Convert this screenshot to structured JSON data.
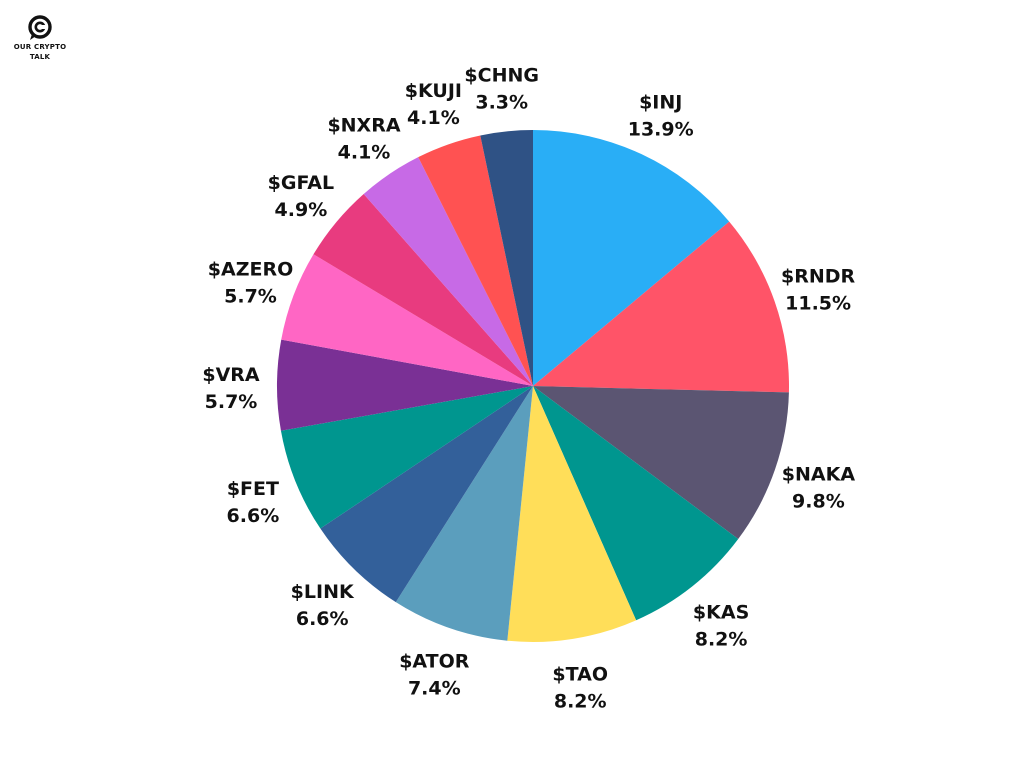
{
  "logo": {
    "line1": "OUR CRYPTO",
    "line2": "TALK"
  },
  "chart_data": {
    "type": "pie",
    "title": "",
    "start": "12 o'clock",
    "direction": "clockwise",
    "legend": "none",
    "slices": [
      {
        "label": "$INJ",
        "value": 13.9,
        "value_label": "13.9%",
        "color": "#29AEF6"
      },
      {
        "label": "$RNDR",
        "value": 11.5,
        "value_label": "11.5%",
        "color": "#FF5468"
      },
      {
        "label": "$NAKA",
        "value": 9.8,
        "value_label": "9.8%",
        "color": "#5B5572"
      },
      {
        "label": "$KAS",
        "value": 8.2,
        "value_label": "8.2%",
        "color": "#00968F"
      },
      {
        "label": "$TAO",
        "value": 8.2,
        "value_label": "8.2%",
        "color": "#FFDE59"
      },
      {
        "label": "$ATOR",
        "value": 7.4,
        "value_label": "7.4%",
        "color": "#5B9EBD"
      },
      {
        "label": "$LINK",
        "value": 6.6,
        "value_label": "6.6%",
        "color": "#33609A"
      },
      {
        "label": "$FET",
        "value": 6.6,
        "value_label": "6.6%",
        "color": "#00968F"
      },
      {
        "label": "$VRA",
        "value": 5.7,
        "value_label": "5.7%",
        "color": "#7A3095"
      },
      {
        "label": "$AZERO",
        "value": 5.7,
        "value_label": "5.7%",
        "color": "#FF66C4"
      },
      {
        "label": "$GFAL",
        "value": 4.9,
        "value_label": "4.9%",
        "color": "#E83B7F"
      },
      {
        "label": "$NXRA",
        "value": 4.1,
        "value_label": "4.1%",
        "color": "#C76AE6"
      },
      {
        "label": "$KUJI",
        "value": 4.1,
        "value_label": "4.1%",
        "color": "#FF5252"
      },
      {
        "label": "$CHNG",
        "value": 3.3,
        "value_label": "3.3%",
        "color": "#2F5285"
      }
    ]
  }
}
